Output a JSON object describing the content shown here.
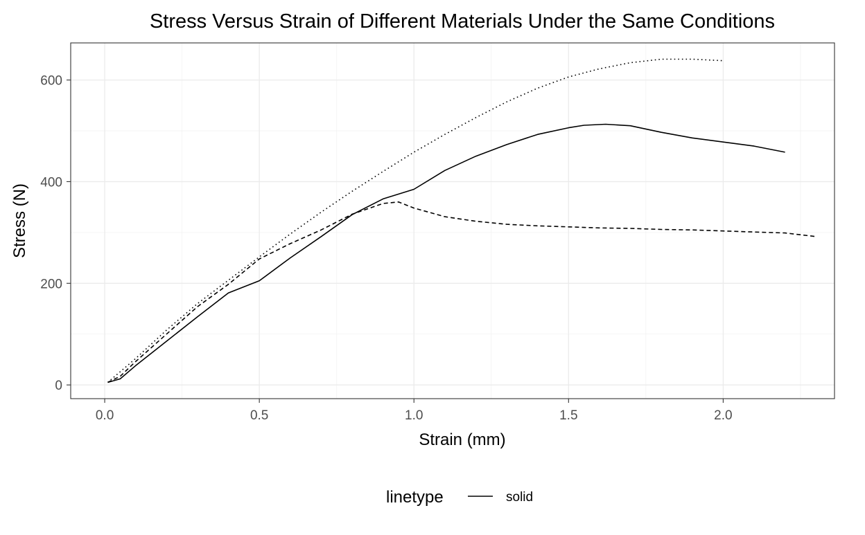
{
  "chart_data": {
    "type": "line",
    "title": "Stress Versus Strain of Different Materials Under the Same Conditions",
    "xlabel": "Strain (mm)",
    "ylabel": "Stress (N)",
    "xlim": [
      -0.11,
      2.36
    ],
    "ylim": [
      -27,
      673
    ],
    "x_ticks": [
      0.0,
      0.5,
      1.0,
      1.5,
      2.0
    ],
    "x_tick_labels": [
      "0.0",
      "0.5",
      "1.0",
      "1.5",
      "2.0"
    ],
    "y_ticks": [
      0,
      200,
      400,
      600
    ],
    "y_tick_labels": [
      "0",
      "200",
      "400",
      "600"
    ],
    "grid": true,
    "legend": {
      "title": "linetype",
      "position": "bottom",
      "entries": [
        {
          "label": "solid",
          "linetype": "solid"
        }
      ]
    },
    "series": [
      {
        "linetype": "solid",
        "color": "#000000",
        "x": [
          0.01,
          0.05,
          0.1,
          0.2,
          0.3,
          0.4,
          0.5,
          0.6,
          0.7,
          0.8,
          0.9,
          1.0,
          1.1,
          1.2,
          1.3,
          1.4,
          1.5,
          1.55,
          1.62,
          1.7,
          1.8,
          1.9,
          2.0,
          2.1,
          2.2
        ],
        "y": [
          5,
          12,
          38,
          86,
          134,
          181,
          205,
          250,
          292,
          335,
          366,
          385,
          422,
          450,
          473,
          493,
          506,
          511,
          513,
          510,
          497,
          486,
          478,
          470,
          458
        ]
      },
      {
        "linetype": "dashed",
        "color": "#000000",
        "x": [
          0.01,
          0.05,
          0.1,
          0.2,
          0.3,
          0.4,
          0.5,
          0.6,
          0.7,
          0.8,
          0.9,
          0.95,
          1.0,
          1.1,
          1.2,
          1.3,
          1.4,
          1.5,
          1.6,
          1.7,
          1.8,
          1.9,
          2.0,
          2.1,
          2.2,
          2.3
        ],
        "y": [
          5,
          17,
          46,
          100,
          154,
          198,
          248,
          278,
          305,
          336,
          357,
          360,
          348,
          331,
          322,
          316,
          313,
          311,
          309,
          308,
          306,
          305,
          303,
          301,
          299,
          292
        ]
      },
      {
        "linetype": "dotted",
        "color": "#000000",
        "x": [
          0.01,
          0.1,
          0.2,
          0.3,
          0.4,
          0.5,
          0.6,
          0.7,
          0.8,
          0.9,
          1.0,
          1.1,
          1.2,
          1.3,
          1.4,
          1.5,
          1.6,
          1.7,
          1.8,
          1.9,
          2.0
        ],
        "y": [
          5,
          52,
          108,
          160,
          206,
          252,
          297,
          340,
          381,
          420,
          458,
          493,
          526,
          557,
          584,
          606,
          622,
          634,
          641,
          641,
          638
        ]
      }
    ]
  }
}
